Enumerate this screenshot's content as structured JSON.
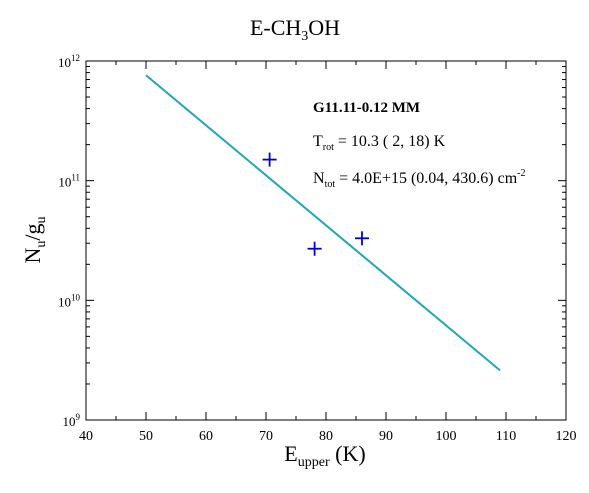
{
  "chart_data": {
    "type": "scatter",
    "title": "E-CH3OH",
    "title_parts": {
      "main": "E-CH",
      "sub": "3",
      "tail": "OH"
    },
    "xlabel": "E_upper (K)",
    "xlabel_parts": {
      "main": "E",
      "sub": "upper",
      "tail": " (K)"
    },
    "ylabel": "N_u/g_u",
    "ylabel_parts": {
      "a": "N",
      "a_sub": "u",
      "mid": "/g",
      "b_sub": "u"
    },
    "xlim": [
      40,
      120
    ],
    "ylim": [
      1000000000.0,
      1000000000000.0
    ],
    "yscale": "log",
    "x_ticks": [
      40,
      50,
      60,
      70,
      80,
      90,
      100,
      110,
      120
    ],
    "y_ticks": [
      {
        "value": 1000000000.0,
        "base": "10",
        "exp": "9"
      },
      {
        "value": 10000000000.0,
        "base": "10",
        "exp": "10"
      },
      {
        "value": 100000000000.0,
        "base": "10",
        "exp": "11"
      },
      {
        "value": 1000000000000.0,
        "base": "10",
        "exp": "12"
      }
    ],
    "points": [
      {
        "x": 70.6,
        "y": 150000000000.0
      },
      {
        "x": 78.1,
        "y": 27000000000.0
      },
      {
        "x": 86.0,
        "y": 33000000000.0
      }
    ],
    "fit_line": {
      "x": [
        50,
        109
      ],
      "y": [
        760000000000.0,
        2600000000.0
      ]
    },
    "colors": {
      "points": "#0000cc",
      "fit": "#1fa8b0"
    },
    "grid": false,
    "annotations": {
      "source": "G11.11-0.12 MM",
      "trot": {
        "main": "T",
        "sub": "rot",
        "tail": " = 10.3 ( 2, 18) K"
      },
      "ntot": {
        "main": "N",
        "sub": "tot",
        "tail": " = 4.0E+15  (0.04, 430.6) cm",
        "sup": "-2"
      }
    }
  }
}
